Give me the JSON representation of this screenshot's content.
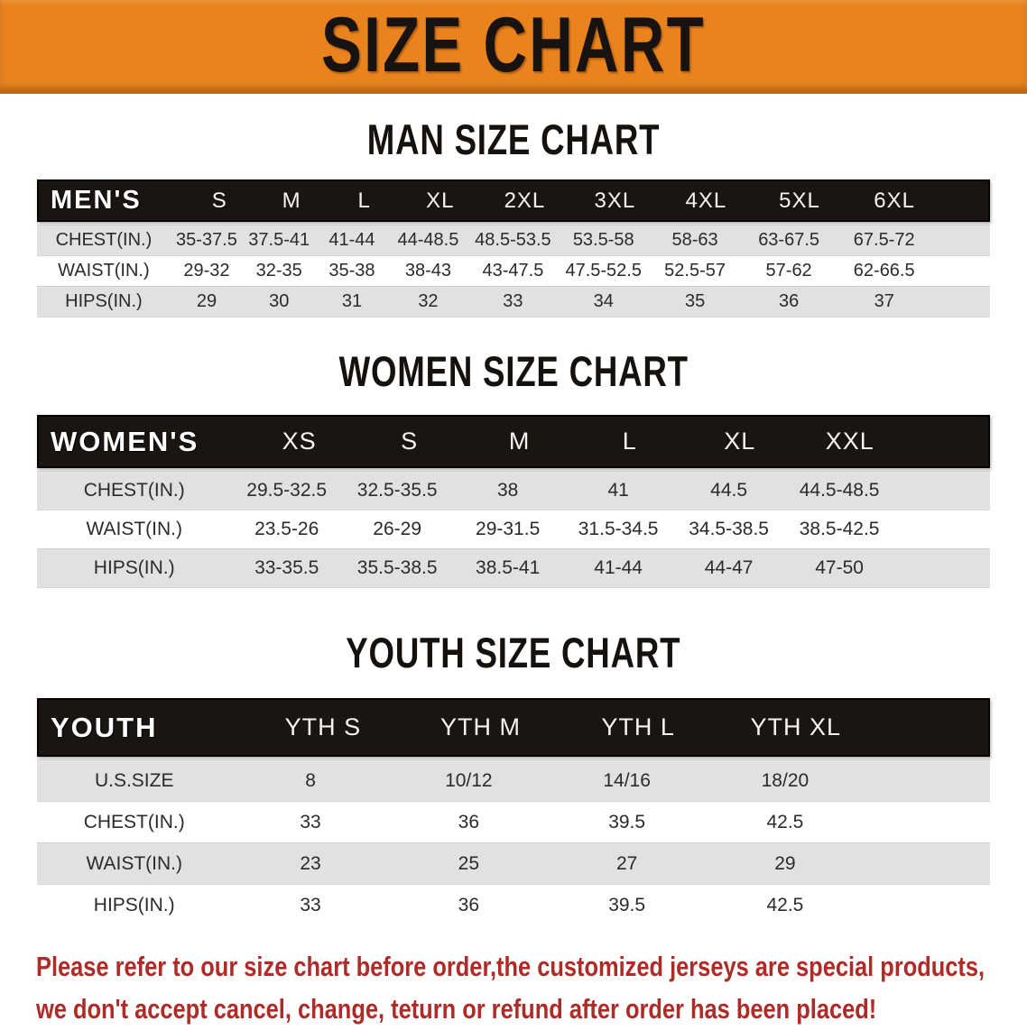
{
  "banner": {
    "title": "SIZE CHART",
    "bg_color": "#e9831e",
    "text_color": "#181310"
  },
  "sections": [
    {
      "id": "men",
      "heading": "MAN SIZE CHART",
      "corner": "MEN'S",
      "columns": [
        "S",
        "M",
        "L",
        "XL",
        "2XL",
        "3XL",
        "4XL",
        "5XL",
        "6XL"
      ],
      "rows": [
        {
          "label": "CHEST(IN.)",
          "values": [
            "35-37.5",
            "37.5-41",
            "41-44",
            "44-48.5",
            "48.5-53.5",
            "53.5-58",
            "58-63",
            "63-67.5",
            "67.5-72"
          ]
        },
        {
          "label": "WAIST(IN.)",
          "values": [
            "29-32",
            "32-35",
            "35-38",
            "38-43",
            "43-47.5",
            "47.5-52.5",
            "52.5-57",
            "57-62",
            "62-66.5"
          ]
        },
        {
          "label": "HIPS(IN.)",
          "values": [
            "29",
            "30",
            "31",
            "32",
            "33",
            "34",
            "35",
            "36",
            "37"
          ]
        }
      ]
    },
    {
      "id": "women",
      "heading": "WOMEN SIZE CHART",
      "corner": "WOMEN'S",
      "columns": [
        "XS",
        "S",
        "M",
        "L",
        "XL",
        "XXL"
      ],
      "rows": [
        {
          "label": "CHEST(IN.)",
          "values": [
            "29.5-32.5",
            "32.5-35.5",
            "38",
            "41",
            "44.5",
            "44.5-48.5"
          ]
        },
        {
          "label": "WAIST(IN.)",
          "values": [
            "23.5-26",
            "26-29",
            "29-31.5",
            "31.5-34.5",
            "34.5-38.5",
            "38.5-42.5"
          ]
        },
        {
          "label": "HIPS(IN.)",
          "values": [
            "33-35.5",
            "35.5-38.5",
            "38.5-41",
            "41-44",
            "44-47",
            "47-50"
          ]
        }
      ]
    },
    {
      "id": "youth",
      "heading": "YOUTH SIZE CHART",
      "corner": "YOUTH",
      "columns": [
        "YTH S",
        "YTH M",
        "YTH L",
        "YTH XL"
      ],
      "rows": [
        {
          "label": "U.S.SIZE",
          "values": [
            "8",
            "10/12",
            "14/16",
            "18/20"
          ]
        },
        {
          "label": "CHEST(IN.)",
          "values": [
            "33",
            "36",
            "39.5",
            "42.5"
          ]
        },
        {
          "label": "WAIST(IN.)",
          "values": [
            "23",
            "25",
            "27",
            "29"
          ]
        },
        {
          "label": "HIPS(IN.)",
          "values": [
            "33",
            "36",
            "39.5",
            "42.5"
          ]
        }
      ]
    }
  ],
  "footer": {
    "line1": "Please refer to our size chart before order,the customized jerseys are special products,",
    "line2": "we don't accept cancel, change, teturn or refund after order has been placed!",
    "text_color": "#af2b27"
  }
}
